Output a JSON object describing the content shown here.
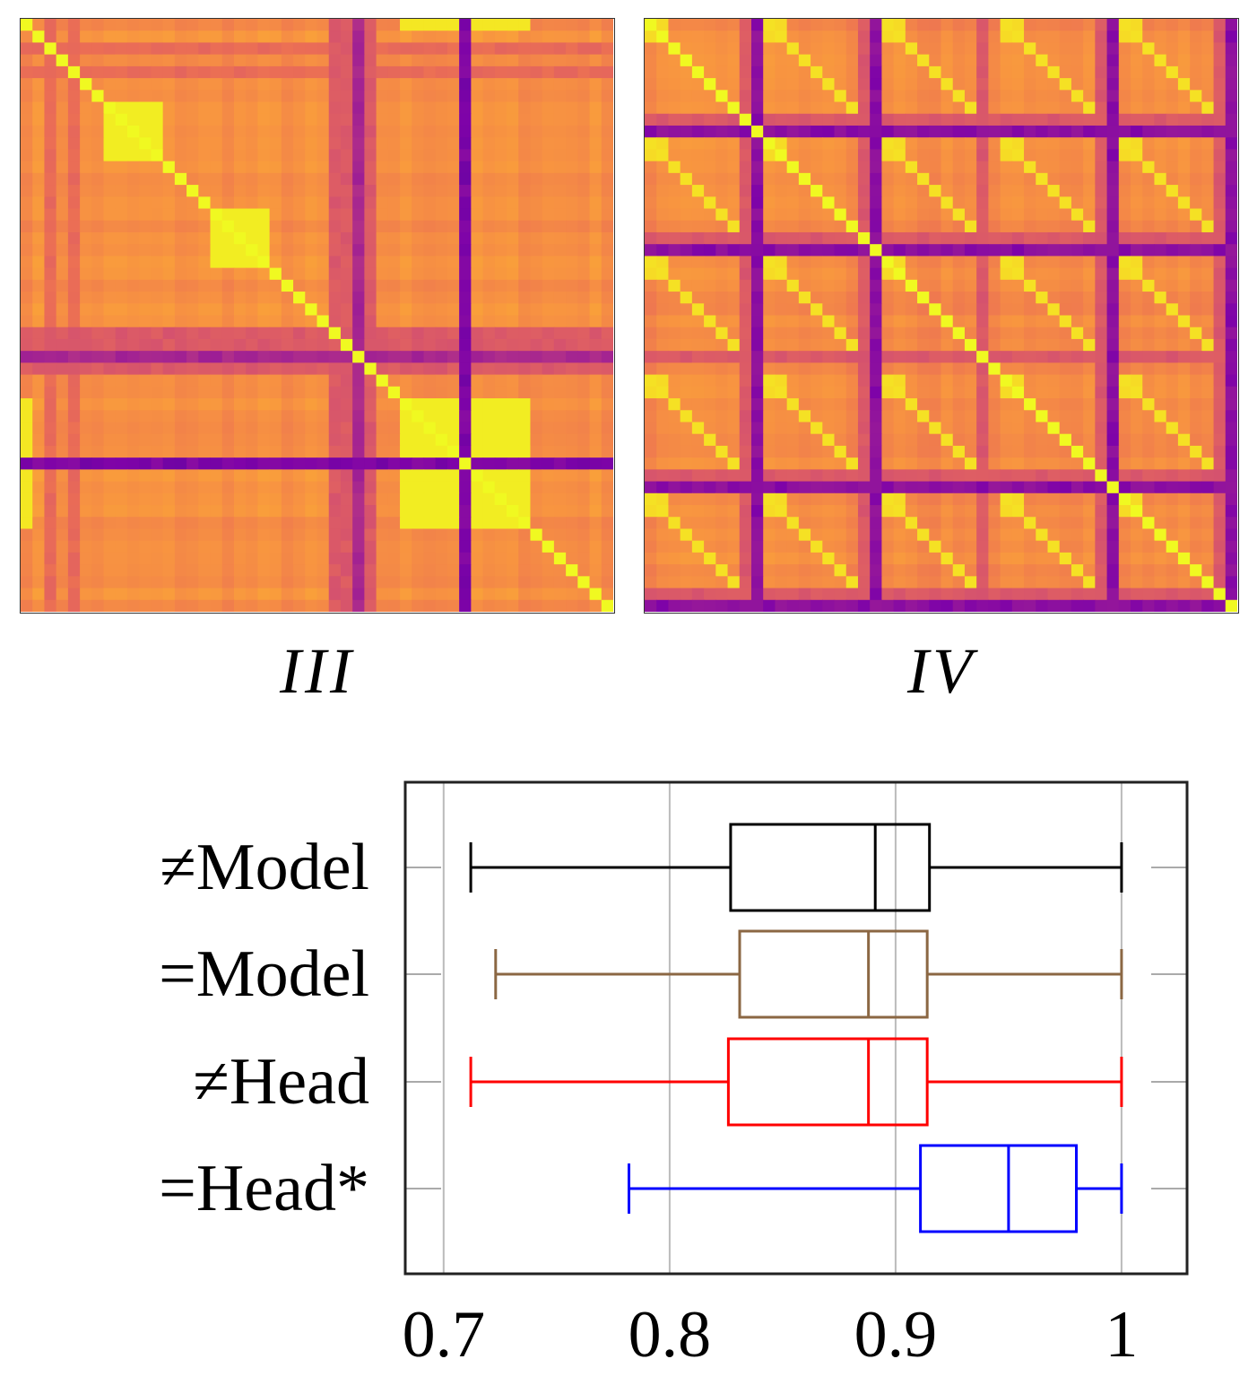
{
  "heatmaps": [
    {
      "label": "III",
      "colormap": "plasma"
    },
    {
      "label": "IV",
      "colormap": "plasma"
    }
  ],
  "chart_data": {
    "type": "boxplot",
    "orientation": "horizontal",
    "categories": [
      "≠Model",
      "=Model",
      "≠Head",
      "=Head*"
    ],
    "series": [
      {
        "category": "≠Model",
        "color": "#000000",
        "min": 0.712,
        "q1": 0.827,
        "median": 0.891,
        "q3": 0.915,
        "max": 1.0
      },
      {
        "category": "=Model",
        "color": "#8b6743",
        "min": 0.723,
        "q1": 0.831,
        "median": 0.888,
        "q3": 0.914,
        "max": 1.0
      },
      {
        "category": "≠Head",
        "color": "#ff0000",
        "min": 0.712,
        "q1": 0.826,
        "median": 0.888,
        "q3": 0.914,
        "max": 1.0
      },
      {
        "category": "=Head*",
        "color": "#0000ff",
        "min": 0.782,
        "q1": 0.911,
        "median": 0.95,
        "q3": 0.98,
        "max": 1.0
      }
    ],
    "xticks": [
      "0.7",
      "0.8",
      "0.9",
      "1"
    ],
    "xtick_values": [
      0.7,
      0.8,
      0.9,
      1.0
    ],
    "xlim": [
      0.683,
      1.029
    ],
    "grid": true
  }
}
